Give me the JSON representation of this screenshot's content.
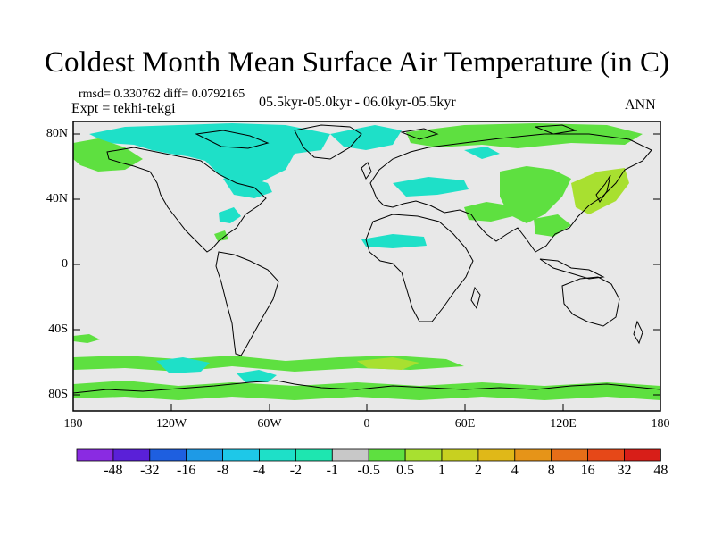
{
  "title": "Coldest Month Mean Surface Air Temperature (in C)",
  "stats": "rmsd= 0.330762 diff= 0.0792165",
  "experiment": "Expt = tekhi-tekgi",
  "period": "05.5kyr-05.0kyr - 06.0kyr-05.5kyr",
  "season": "ANN",
  "map": {
    "land_color": "#e8e8e8",
    "lat_ticks": [
      "80N",
      "40N",
      "0",
      "40S",
      "80S"
    ],
    "lon_ticks": [
      "180",
      "120W",
      "60W",
      "0",
      "60E",
      "120E",
      "180"
    ]
  },
  "colorbar": {
    "colors": [
      "#8a2be2",
      "#5a20d8",
      "#1e5fe0",
      "#1e9ae6",
      "#1ec8e8",
      "#1ee0c8",
      "#1ee6b0",
      "#c8c8c8",
      "#5ee040",
      "#a8e030",
      "#c8d020",
      "#e0b818",
      "#e69418",
      "#e66e18",
      "#e64818",
      "#d81e18"
    ],
    "labels": [
      "-48",
      "-32",
      "-16",
      "-8",
      "-4",
      "-2",
      "-1",
      "-0.5",
      "0.5",
      "1",
      "2",
      "4",
      "8",
      "16",
      "32",
      "48"
    ]
  }
}
